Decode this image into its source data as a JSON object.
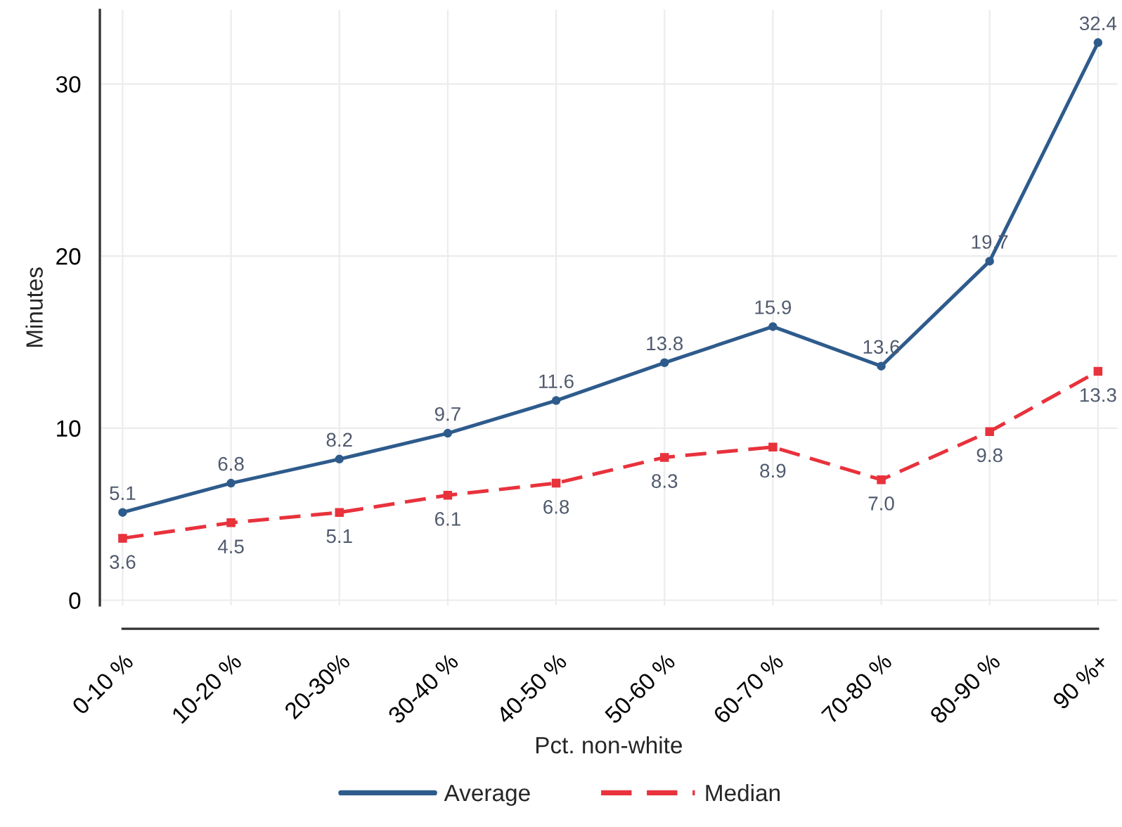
{
  "chart_data": {
    "type": "line",
    "xlabel": "Pct. non-white",
    "ylabel": "Minutes",
    "categories": [
      "0-10 %",
      "10-20 %",
      "20-30%",
      "30-40 %",
      "40-50 %",
      "50-60 %",
      "60-70 %",
      "70-80 %",
      "80-90 %",
      "90 %+"
    ],
    "series": [
      {
        "name": "Average",
        "color": "#2e5b8c",
        "marker": "circle",
        "line_style": "solid",
        "values": [
          5.1,
          6.8,
          8.2,
          9.7,
          11.6,
          13.8,
          15.9,
          13.6,
          19.7,
          32.4
        ],
        "value_labels": [
          "5.1",
          "6.8",
          "8.2",
          "9.7",
          "11.6",
          "13.8",
          "15.9",
          "13.6",
          "19.7",
          "32.4"
        ]
      },
      {
        "name": "Median",
        "color": "#e8323c",
        "marker": "square",
        "line_style": "dashed",
        "values": [
          3.6,
          4.5,
          5.1,
          6.1,
          6.8,
          8.3,
          8.9,
          7.0,
          9.8,
          13.3
        ],
        "value_labels": [
          "3.6",
          "4.5",
          "5.1",
          "6.1",
          "6.8",
          "8.3",
          "8.9",
          "7.0",
          "9.8",
          "13.3"
        ]
      }
    ],
    "ylim": [
      -0.3,
      34.3
    ],
    "yticks": [
      0,
      10,
      20,
      30
    ],
    "grid": true,
    "legend": "bottom",
    "data_labels": true
  }
}
